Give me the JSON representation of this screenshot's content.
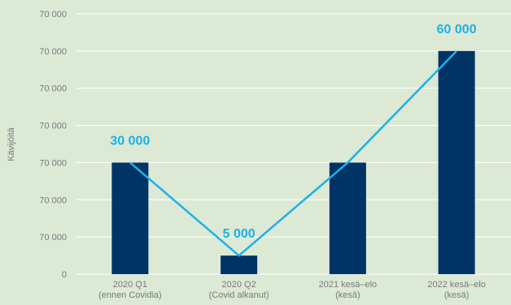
{
  "chart_data": {
    "type": "bar",
    "ylabel": "Kävijöitä",
    "y_tick_labels": [
      "0",
      "70 000",
      "70 000",
      "70 000",
      "70 000",
      "70 000",
      "70 000",
      "70 000"
    ],
    "ylim": [
      0,
      70000
    ],
    "categories": [
      [
        "2020 Q1",
        "(ennen Covidia)"
      ],
      [
        "2020 Q2",
        "(Covid alkanut)"
      ],
      [
        "2021 kesä–elo",
        "(kesä)"
      ],
      [
        "2022 kesä–elo",
        "(kesä)"
      ]
    ],
    "bars": {
      "values": [
        30000,
        5000,
        30000,
        60000
      ],
      "color": "#003466"
    },
    "line": {
      "values": [
        30000,
        5000,
        30000,
        60000
      ],
      "labels": [
        "30 000",
        "5 000",
        "",
        "60 000"
      ],
      "color": "#1eb1e7"
    },
    "background": "#dbe9d5",
    "grid": true,
    "grid_color": "#ffffff"
  }
}
